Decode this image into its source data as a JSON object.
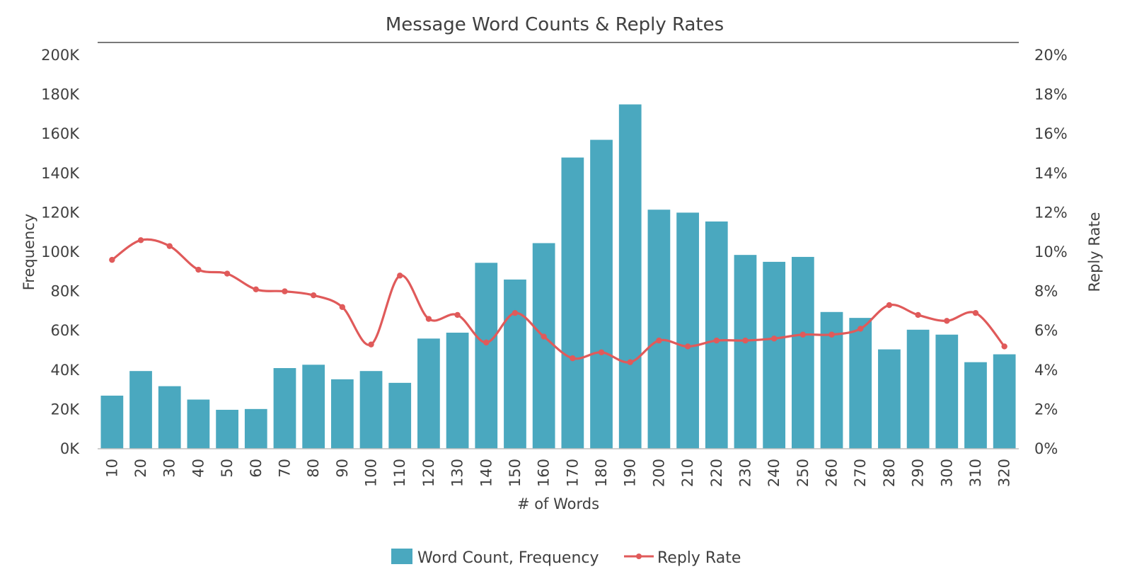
{
  "chart_data": {
    "type": "bar",
    "title": "Message Word Counts & Reply Rates",
    "xlabel": "# of Words",
    "ylabel": "Frequency",
    "y2label": "Reply Rate",
    "categories": [
      "10",
      "20",
      "30",
      "40",
      "50",
      "60",
      "70",
      "80",
      "90",
      "100",
      "110",
      "120",
      "130",
      "140",
      "150",
      "160",
      "170",
      "180",
      "190",
      "200",
      "210",
      "220",
      "230",
      "240",
      "250",
      "260",
      "270",
      "280",
      "290",
      "300",
      "310",
      "320"
    ],
    "ylim": [
      0,
      200000
    ],
    "y2lim": [
      0,
      0.2
    ],
    "yticks": [
      {
        "value": 0,
        "label": "0K"
      },
      {
        "value": 20000,
        "label": "20K"
      },
      {
        "value": 40000,
        "label": "40K"
      },
      {
        "value": 60000,
        "label": "60K"
      },
      {
        "value": 80000,
        "label": "80K"
      },
      {
        "value": 100000,
        "label": "100K"
      },
      {
        "value": 120000,
        "label": "120K"
      },
      {
        "value": 140000,
        "label": "140K"
      },
      {
        "value": 160000,
        "label": "160K"
      },
      {
        "value": 180000,
        "label": "180K"
      },
      {
        "value": 200000,
        "label": "200K"
      }
    ],
    "y2ticks": [
      {
        "value": 0,
        "label": "0%"
      },
      {
        "value": 0.02,
        "label": "2%"
      },
      {
        "value": 0.04,
        "label": "4%"
      },
      {
        "value": 0.06,
        "label": "6%"
      },
      {
        "value": 0.08,
        "label": "8%"
      },
      {
        "value": 0.1,
        "label": "10%"
      },
      {
        "value": 0.12,
        "label": "12%"
      },
      {
        "value": 0.14,
        "label": "14%"
      },
      {
        "value": 0.16,
        "label": "16%"
      },
      {
        "value": 0.18,
        "label": "18%"
      },
      {
        "value": 0.2,
        "label": "20%"
      }
    ],
    "series": [
      {
        "name": "Word Count, Frequency",
        "type": "bar",
        "axis": "left",
        "color": "#4aa8bf",
        "values": [
          27000,
          39500,
          31800,
          25000,
          19800,
          20200,
          41000,
          42700,
          35300,
          39500,
          33500,
          56000,
          59000,
          94500,
          86000,
          104500,
          148000,
          157000,
          175000,
          121500,
          120000,
          115500,
          98500,
          95000,
          97500,
          69500,
          66500,
          50500,
          60500,
          58000,
          44000,
          48000
        ]
      },
      {
        "name": "Reply Rate",
        "type": "line",
        "axis": "right",
        "color": "#e05a5a",
        "values": [
          0.096,
          0.106,
          0.103,
          0.091,
          0.089,
          0.081,
          0.08,
          0.078,
          0.072,
          0.053,
          0.088,
          0.066,
          0.068,
          0.054,
          0.069,
          0.057,
          0.046,
          0.049,
          0.044,
          0.055,
          0.052,
          0.055,
          0.055,
          0.056,
          0.058,
          0.058,
          0.061,
          0.073,
          0.068,
          0.065,
          0.069,
          0.052
        ]
      }
    ],
    "grid": false,
    "legend_position": "bottom"
  }
}
